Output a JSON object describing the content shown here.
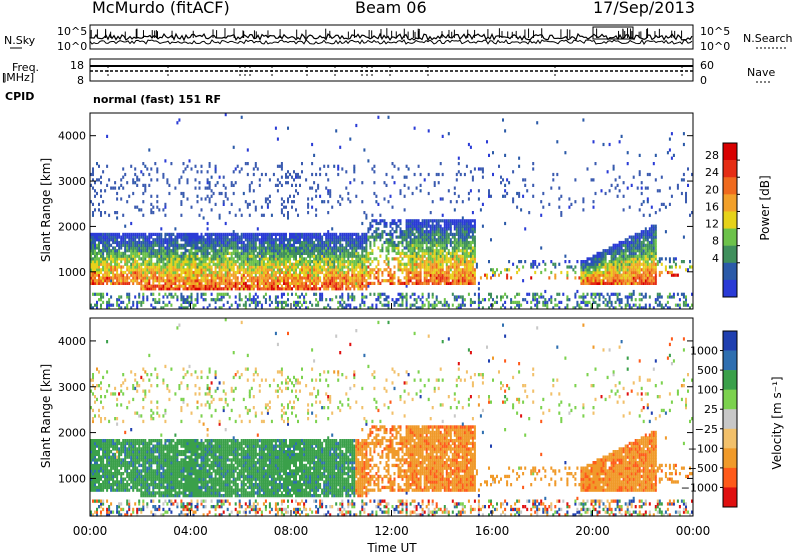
{
  "header": {
    "station": "McMurdo (fitACF)",
    "beam": "Beam 06",
    "date": "17/Sep/2013"
  },
  "side_labels": {
    "nsky": "N.Sky",
    "freq_line1": "Freq.",
    "freq_line2": "[MHz]",
    "cpid": "CPID",
    "nsearch": "N.Search",
    "nave": "Nave"
  },
  "cpid_text": "normal (fast) 151 RF",
  "colors": {
    "power": [
      "#2a3bd6",
      "#2b5aa8",
      "#3f8f5c",
      "#6cc24a",
      "#e6d21a",
      "#f2a02a",
      "#ef6a1e",
      "#e52d14",
      "#d80000"
    ],
    "velocity": [
      "#e01010",
      "#ff5a1a",
      "#f09a2a",
      "#f2c06a",
      "#c8c8c8",
      "#7cd24e",
      "#3aa04a",
      "#2f6fb0",
      "#1f3fb0"
    ],
    "background_echo": "#3b5bb0"
  },
  "chart_data": [
    {
      "type": "line",
      "title": "",
      "ylabel": "",
      "left_ticks": [
        "10^5",
        "10^0"
      ],
      "right_ticks": [
        "10^5",
        "10^0"
      ],
      "series": [
        {
          "name": "N.Sky",
          "values": [
            5,
            5,
            5,
            5,
            5,
            5,
            5,
            5,
            5,
            5,
            5,
            5
          ]
        },
        {
          "name": "N.Search",
          "values": [
            2.5,
            2.5,
            2.5,
            2.5,
            2.5,
            2.5,
            2.5,
            2.5,
            2.5,
            2.5,
            2.5,
            2.5
          ]
        }
      ]
    },
    {
      "type": "line",
      "left_ticks": [
        "18",
        "8"
      ],
      "right_ticks": [
        "60",
        "0"
      ],
      "series": [
        {
          "name": "Freq.",
          "values": [
            12,
            12,
            12,
            12,
            12,
            12,
            12,
            12,
            12,
            12,
            12,
            12
          ]
        },
        {
          "name": "Nave",
          "values": [
            30,
            30,
            30,
            30,
            30,
            30,
            30,
            30,
            30,
            30,
            30,
            30
          ]
        }
      ]
    },
    {
      "type": "heatmap",
      "quantity": "Power",
      "ylabel": "Slant Range [km]",
      "colorbar_label": "Power [dB]",
      "colorbar_ticks": [
        "28",
        "24",
        "20",
        "16",
        "12",
        "8",
        "4"
      ],
      "yticks": [
        "4000",
        "3000",
        "2000",
        "1000"
      ],
      "ylim": [
        180,
        4500
      ],
      "xlim": [
        "00:00",
        "24:00"
      ]
    },
    {
      "type": "heatmap",
      "quantity": "Velocity",
      "ylabel": "Slant Range [km]",
      "colorbar_label": "Velocity [m s⁻¹]",
      "colorbar_ticks": [
        "1000",
        "500",
        "100",
        "25",
        "−25",
        "−100",
        "−500",
        "−1000"
      ],
      "yticks": [
        "4000",
        "3000",
        "2000",
        "1000"
      ],
      "ylim": [
        180,
        4500
      ],
      "xticks": [
        "00:00",
        "04:00",
        "08:00",
        "12:00",
        "16:00",
        "20:00",
        "00:00"
      ],
      "xlabel": "Time UT"
    }
  ]
}
